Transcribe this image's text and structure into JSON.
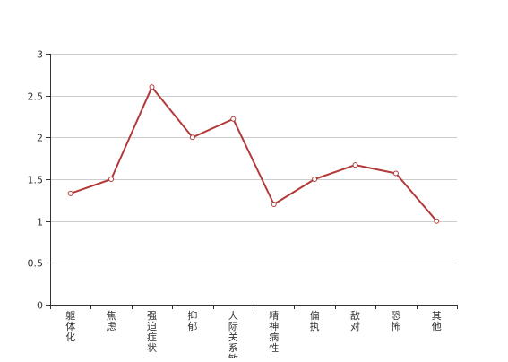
{
  "chart_data": {
    "type": "line",
    "title": "",
    "xlabel": "",
    "ylabel": "",
    "categories": [
      "躯体化",
      "焦虑",
      "强迫症状",
      "抑郁",
      "人际关系敏感",
      "精神病性",
      "偏执",
      "敌对",
      "恐怖",
      "其他"
    ],
    "series": [
      {
        "values": [
          1.33,
          1.5,
          2.6,
          2.0,
          2.22,
          1.2,
          1.5,
          1.67,
          1.57,
          1.0
        ]
      }
    ],
    "ylim": [
      0,
      3
    ],
    "yticks": [
      "0",
      "0.5",
      "1",
      "1.5",
      "2",
      "2.5",
      "3"
    ],
    "grid": true,
    "legend": "none",
    "colors": {
      "line": "#b23a3a",
      "marker_fill": "#ffffff",
      "grid": "#cccccc",
      "axis": "#333333",
      "text": "#333333"
    }
  }
}
